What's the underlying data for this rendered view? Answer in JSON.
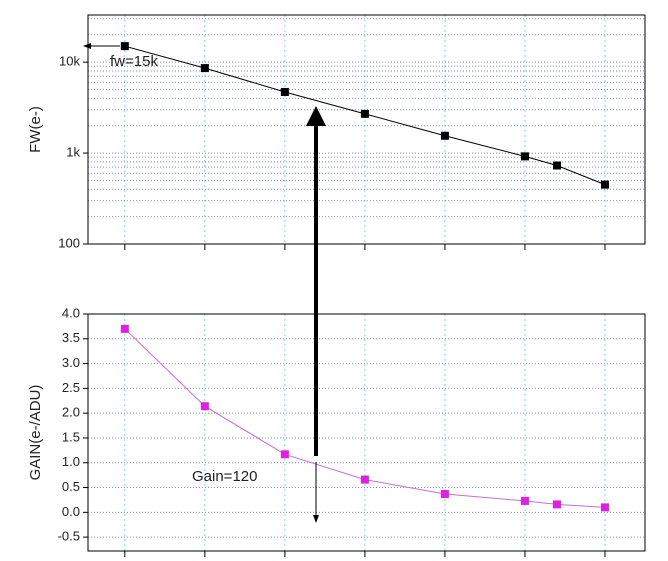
{
  "chart_data": [
    {
      "type": "line",
      "y_label": "FW(e-)",
      "log_y": true,
      "x": [
        0,
        1,
        2,
        3,
        4,
        5,
        5.4,
        6
      ],
      "values": [
        15000,
        8600,
        4700,
        2700,
        1550,
        920,
        730,
        450
      ],
      "color": "#000000",
      "line_color": "#000000",
      "xlim": [
        -0.46,
        6.5
      ],
      "xgrid": [
        0,
        1,
        2,
        3,
        4,
        5,
        6
      ],
      "ylim": [
        100,
        33000
      ],
      "yticks": [
        100,
        {
          "value": 1000,
          "label": "1k"
        },
        {
          "value": 10000,
          "label": "10k"
        }
      ],
      "yminor": [
        200,
        300,
        400,
        500,
        600,
        700,
        800,
        900,
        2000,
        3000,
        4000,
        5000,
        6000,
        7000,
        8000,
        9000,
        20000,
        30000
      ],
      "annotation": "fw=15k",
      "grid": true
    },
    {
      "type": "line",
      "y_label": "GAIN(e-/ADU)",
      "x": [
        0,
        1,
        2,
        3,
        4,
        5,
        5.4,
        6
      ],
      "values": [
        3.7,
        2.14,
        1.17,
        0.66,
        0.37,
        0.23,
        0.16,
        0.1
      ],
      "color": "#e020e0",
      "line_color": "#c070d8",
      "xlim": [
        -0.46,
        6.5
      ],
      "xgrid": [
        0,
        1,
        2,
        3,
        4,
        5,
        6
      ],
      "ylim": [
        -0.78,
        4.0
      ],
      "yticks": [
        -0.5,
        {
          "value": 0,
          "label": "0.0"
        },
        0.5,
        {
          "value": 1,
          "label": "1.0"
        },
        1.5,
        {
          "value": 2,
          "label": "2.0"
        },
        2.5,
        {
          "value": 3,
          "label": "3.0"
        },
        3.5,
        {
          "value": 4,
          "label": "4.0"
        }
      ],
      "annotation": "Gain=120",
      "grid": true
    }
  ]
}
